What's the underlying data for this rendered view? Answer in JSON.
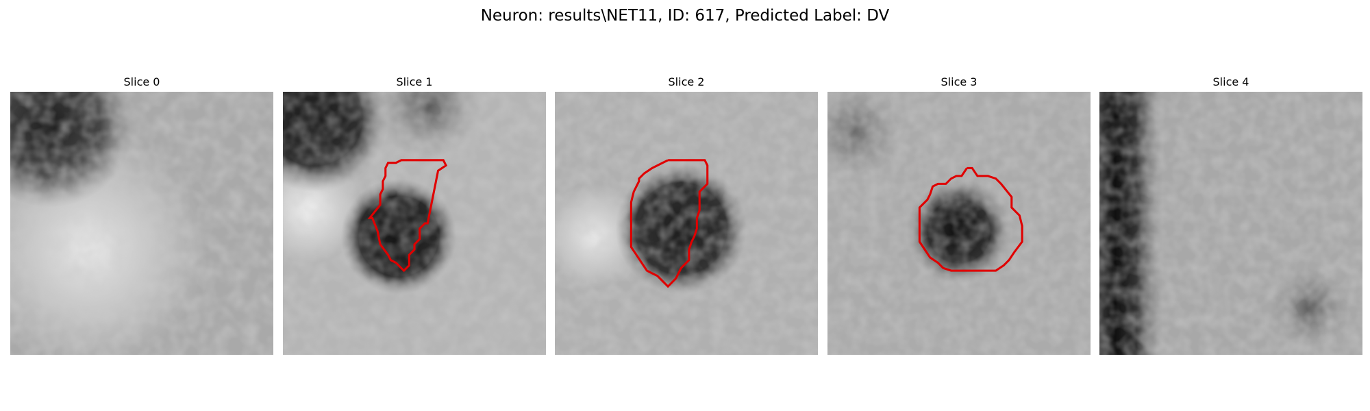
{
  "figure": {
    "title": "Neuron: results\\NET11, ID: 617, Predicted Label: DV"
  },
  "slices": [
    {
      "title": "Slice 0"
    },
    {
      "title": "Slice 1"
    },
    {
      "title": "Slice 2"
    },
    {
      "title": "Slice 3"
    },
    {
      "title": "Slice 4"
    }
  ],
  "colors": {
    "contour": "#e00000",
    "background": "#ffffff"
  }
}
